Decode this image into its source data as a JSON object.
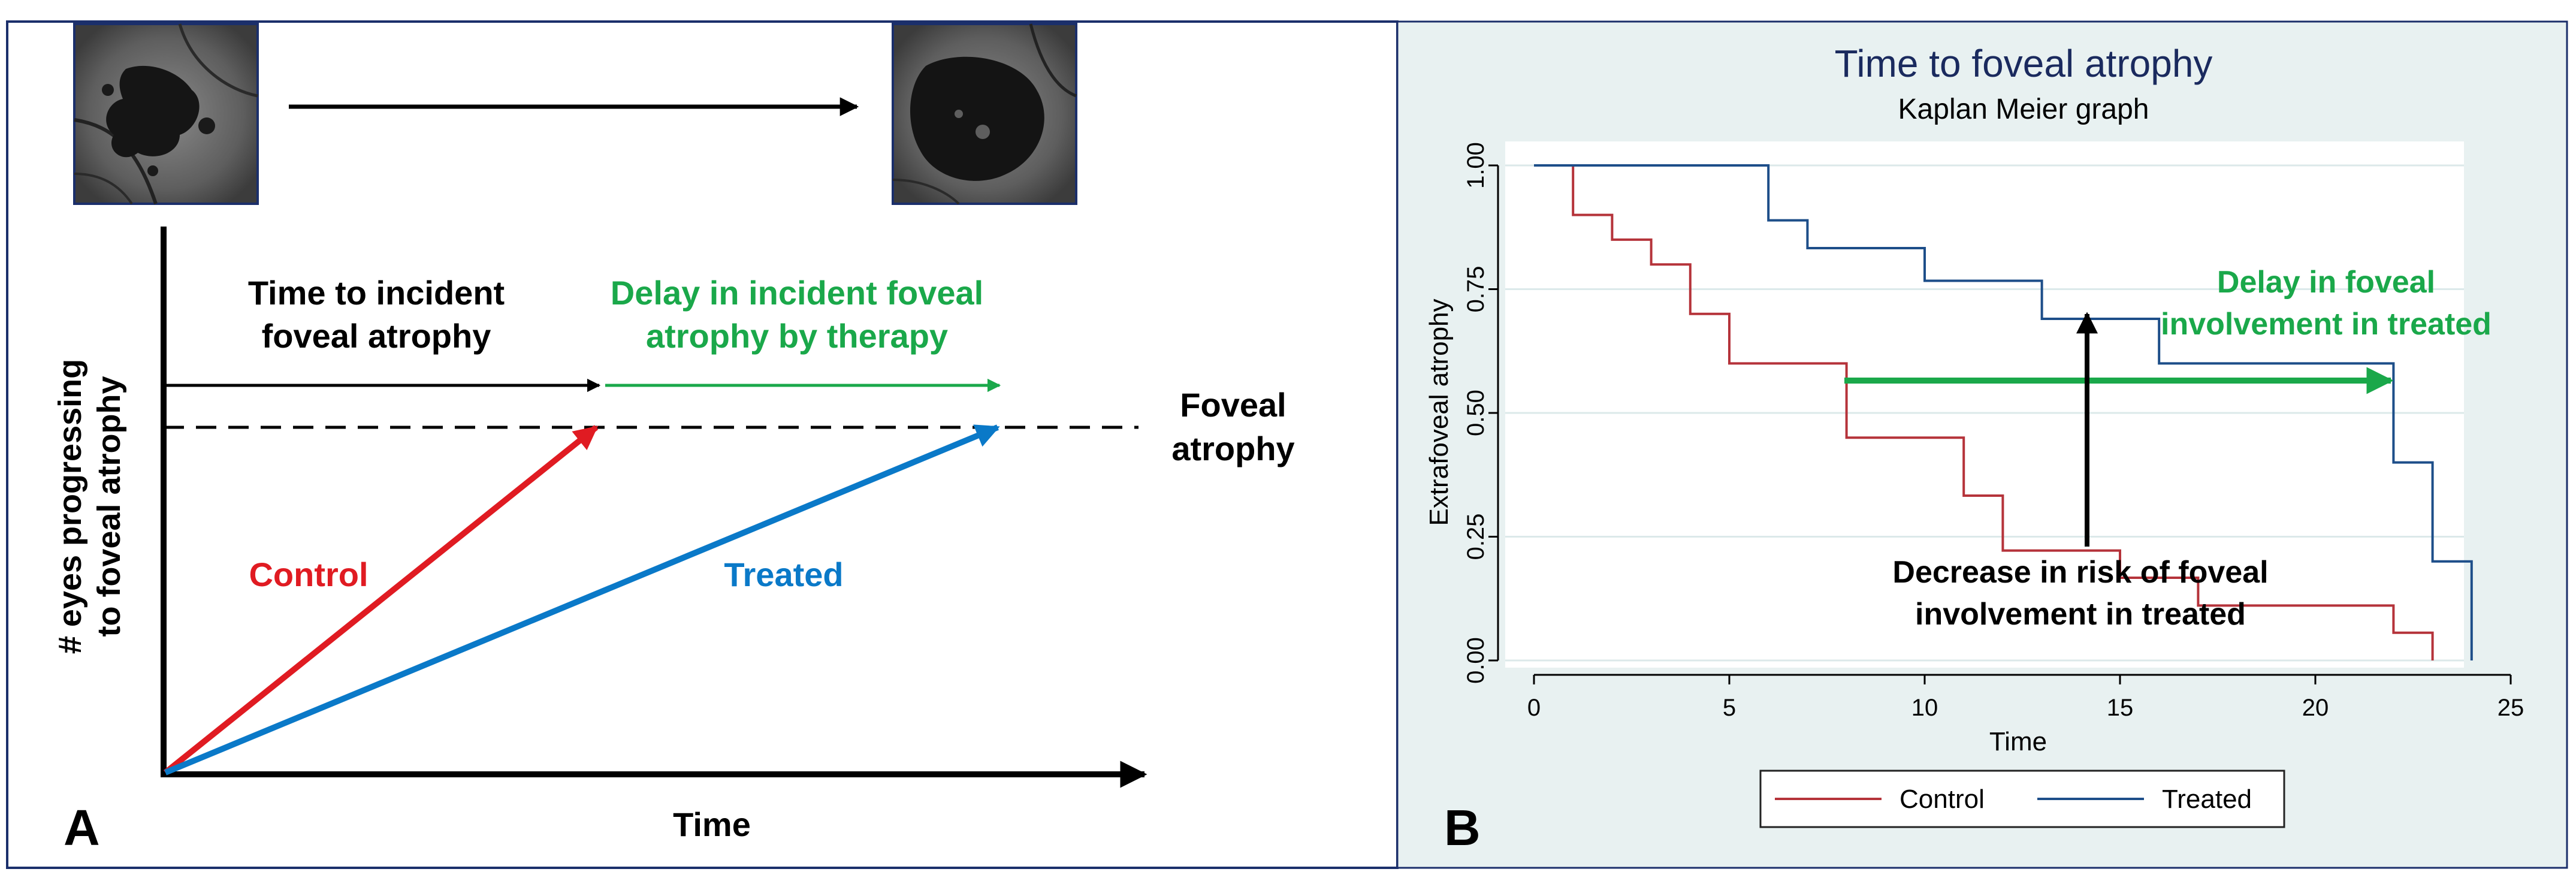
{
  "colors": {
    "control": "#e01b22",
    "treated": "#0a79c8",
    "delay": "#1aa84a",
    "km_control": "#b5333a",
    "km_treated": "#1d4e89",
    "panel_border": "#1b2f6b",
    "panel_b_bg": "#e8f1f1",
    "grid": "#dce9ea",
    "arrow": "#000000"
  },
  "panel_a": {
    "label": "A",
    "fundus_left_icon": "fundus-autofluorescence-image-early",
    "fundus_right_icon": "fundus-autofluorescence-image-late",
    "y_axis_label_line1": "# eyes progressing",
    "y_axis_label_line2": "to foveal atrophy",
    "x_axis_label": "Time",
    "time_to_incident_line1": "Time to incident",
    "time_to_incident_line2": "foveal atrophy",
    "delay_line1": "Delay in incident foveal",
    "delay_line2": "atrophy by therapy",
    "threshold_line1": "Foveal",
    "threshold_line2": "atrophy",
    "control_label": "Control",
    "treated_label": "Treated"
  },
  "panel_b": {
    "label": "B",
    "annotations": {
      "delay_line1": "Delay in foveal",
      "delay_line2": "involvement in treated",
      "risk_line1": "Decrease in risk of foveal",
      "risk_line2": "involvement in treated"
    }
  },
  "chart_data": {
    "type": "line",
    "step": true,
    "title": "Time to foveal atrophy",
    "subtitle": "Kaplan Meier graph",
    "xlabel": "Time",
    "ylabel": "Extrafoveal atrophy",
    "xlim": [
      0,
      25
    ],
    "ylim": [
      0,
      1
    ],
    "xticks": [
      0,
      5,
      10,
      15,
      20,
      25
    ],
    "xtick_labels": [
      "0",
      "5",
      "10",
      "15",
      "20",
      "25"
    ],
    "yticks": [
      0,
      0.25,
      0.5,
      0.75,
      1
    ],
    "ytick_labels": [
      "0.00",
      "0.25",
      "0.50",
      "0.75",
      "1.00"
    ],
    "grid": true,
    "legend_position": "bottom",
    "series": [
      {
        "name": "Control",
        "x": [
          0,
          1,
          2,
          3,
          4,
          5,
          8,
          11,
          12,
          15,
          17,
          22,
          23,
          23
        ],
        "y": [
          1.0,
          0.9,
          0.85,
          0.8,
          0.7,
          0.6,
          0.45,
          0.333,
          0.222,
          0.167,
          0.111,
          0.056,
          0.0,
          0.0
        ]
      },
      {
        "name": "Treated",
        "x": [
          0,
          6,
          7,
          10,
          13,
          16,
          22,
          23,
          24,
          24
        ],
        "y": [
          1.0,
          0.889,
          0.833,
          0.767,
          0.69,
          0.6,
          0.4,
          0.2,
          0.0,
          0.0
        ]
      }
    ]
  }
}
